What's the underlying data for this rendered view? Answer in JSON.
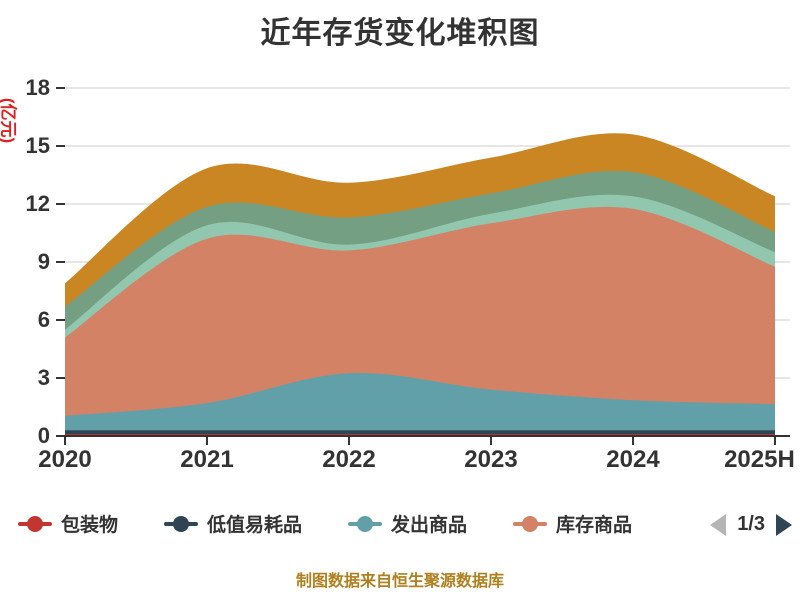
{
  "title": "近年存货变化堆积图",
  "y_axis": {
    "unit": "(亿元)",
    "unit_color": "#e01f1f",
    "tick_labels": [
      "0",
      "3",
      "6",
      "9",
      "12",
      "15",
      "18"
    ],
    "max": 18
  },
  "x_axis": {
    "categories": [
      "2020",
      "2021",
      "2022",
      "2023",
      "2024",
      "2025H"
    ]
  },
  "legend": {
    "items": [
      {
        "label": "包装物",
        "color": "#c23531"
      },
      {
        "label": "低值易耗品",
        "color": "#2f4554"
      },
      {
        "label": "发出商品",
        "color": "#61a0a8"
      },
      {
        "label": "库存商品",
        "color": "#d48265"
      }
    ],
    "pagination": {
      "current": "1/3",
      "prev_color": "#b5b5b5",
      "next_color": "#2f4554"
    }
  },
  "footer": {
    "text": "制图数据来自恒生聚源数据库",
    "color": "#b0801f"
  },
  "colors": {
    "text": "#333333",
    "grid": "#cccccc",
    "axis": "#333333",
    "background": "#ffffff"
  },
  "chart_data": {
    "type": "area",
    "stacked": true,
    "smooth": true,
    "title": "近年存货变化堆积图",
    "ylabel": "(亿元)",
    "ylim": [
      0,
      18
    ],
    "y_ticks": [
      0,
      3,
      6,
      9,
      12,
      15,
      18
    ],
    "grid": true,
    "legend_position": "bottom",
    "legend_note": "legend paginated 1/3, only first 4 of 7 visible series named",
    "x": [
      "2020",
      "2021",
      "2022",
      "2023",
      "2024",
      "2025H"
    ],
    "series": [
      {
        "name": "包装物",
        "color": "#c23531",
        "values": [
          0.1,
          0.1,
          0.1,
          0.1,
          0.1,
          0.1
        ]
      },
      {
        "name": "低值易耗品",
        "color": "#2f4554",
        "values": [
          0.2,
          0.2,
          0.2,
          0.2,
          0.2,
          0.2
        ]
      },
      {
        "name": "发出商品",
        "color": "#61a0a8",
        "values": [
          0.75,
          1.4,
          2.95,
          2.1,
          1.55,
          1.35
        ]
      },
      {
        "name": "库存商品",
        "color": "#d48265",
        "values": [
          4.05,
          8.5,
          6.35,
          8.6,
          9.9,
          7.1
        ]
      },
      {
        "name": "",
        "color": "#91c7ae",
        "values": [
          0.4,
          0.7,
          0.3,
          0.5,
          0.65,
          0.75
        ]
      },
      {
        "name": "",
        "color": "#749f83",
        "values": [
          1.2,
          0.95,
          1.4,
          1.05,
          1.25,
          1.05
        ]
      },
      {
        "name": "",
        "color": "#ca8622",
        "values": [
          1.2,
          2.0,
          1.8,
          1.85,
          1.95,
          1.85
        ]
      }
    ],
    "stack_totals": [
      7.9,
      13.85,
      13.1,
      14.4,
      15.6,
      12.4
    ]
  }
}
